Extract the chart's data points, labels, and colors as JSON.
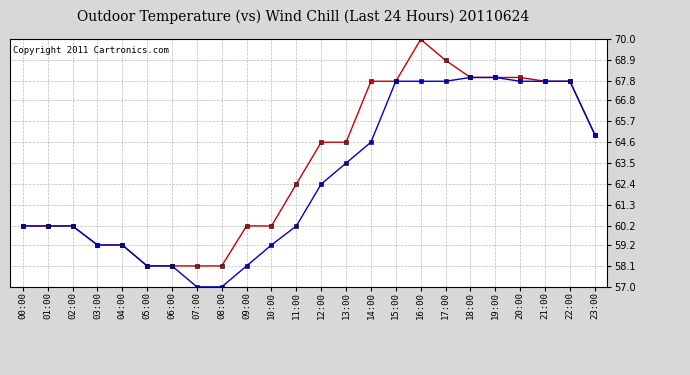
{
  "title": "Outdoor Temperature (vs) Wind Chill (Last 24 Hours) 20110624",
  "copyright": "Copyright 2011 Cartronics.com",
  "hours": [
    "00:00",
    "01:00",
    "02:00",
    "03:00",
    "04:00",
    "05:00",
    "06:00",
    "07:00",
    "08:00",
    "09:00",
    "10:00",
    "11:00",
    "12:00",
    "13:00",
    "14:00",
    "15:00",
    "16:00",
    "17:00",
    "18:00",
    "19:00",
    "20:00",
    "21:00",
    "22:00",
    "23:00"
  ],
  "red_temp": [
    60.2,
    60.2,
    60.2,
    59.2,
    59.2,
    58.1,
    58.1,
    58.1,
    58.1,
    60.2,
    60.2,
    62.4,
    64.6,
    64.6,
    67.8,
    67.8,
    70.0,
    68.9,
    68.0,
    68.0,
    68.0,
    67.8,
    67.8,
    65.0
  ],
  "blue_wc": [
    60.2,
    60.2,
    60.2,
    59.2,
    59.2,
    58.1,
    58.1,
    57.0,
    57.0,
    58.1,
    59.2,
    60.2,
    62.4,
    63.5,
    64.6,
    67.8,
    67.8,
    67.8,
    68.0,
    68.0,
    67.8,
    67.8,
    67.8,
    65.0
  ],
  "ylim": [
    57.0,
    70.0
  ],
  "yticks": [
    57.0,
    58.1,
    59.2,
    60.2,
    61.3,
    62.4,
    63.5,
    64.6,
    65.7,
    66.8,
    67.8,
    68.9,
    70.0
  ],
  "red_color": "#cc0000",
  "blue_color": "#0000cc",
  "bg_color": "#d8d8d8",
  "plot_bg": "#ffffff",
  "grid_color": "#aaaaaa",
  "title_fontsize": 10,
  "copyright_fontsize": 6.5
}
